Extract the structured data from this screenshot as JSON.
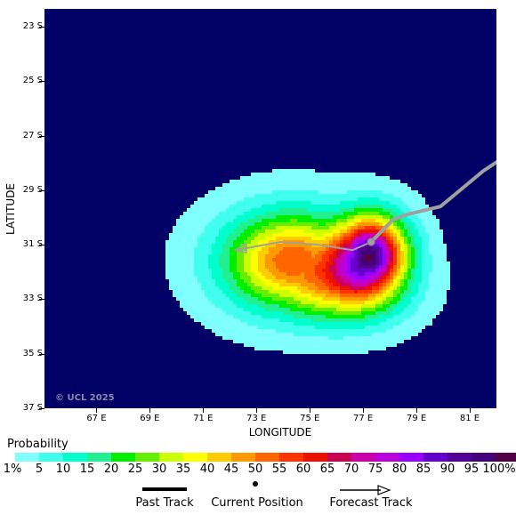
{
  "map": {
    "background_color": "#000066",
    "copyright": "© UCL 2025",
    "lat_labels": [
      "23 S",
      "25 S",
      "27 S",
      "29 S",
      "31 S",
      "33 S",
      "35 S",
      "37 S"
    ],
    "lon_labels": [
      "67 E",
      "69 E",
      "71 E",
      "73 E",
      "75 E",
      "77 E",
      "79 E",
      "81 E"
    ],
    "x_axis_title": "LONGITUDE",
    "y_axis_title": "LATITUDE",
    "track_color": "#a0a0a0",
    "past_track": [
      [
        83.5,
        27.0
      ],
      [
        81.5,
        28.3
      ],
      [
        79.9,
        29.6
      ],
      [
        78.6,
        29.9
      ],
      [
        78.1,
        30.1
      ],
      [
        77.8,
        30.4
      ],
      [
        77.5,
        30.7
      ],
      [
        77.3,
        30.9
      ]
    ],
    "forecast_track": [
      [
        77.3,
        30.9
      ],
      [
        76.6,
        31.2
      ],
      [
        75.3,
        31.0
      ],
      [
        73.9,
        30.9
      ],
      [
        72.2,
        31.2
      ]
    ],
    "current_position": [
      77.3,
      30.9
    ]
  },
  "legend": {
    "probability_title": "Probability",
    "colorbar_labels": [
      "1%",
      "5",
      "10",
      "15",
      "20",
      "25",
      "30",
      "35",
      "40",
      "45",
      "50",
      "55",
      "60",
      "65",
      "70",
      "75",
      "80",
      "85",
      "90",
      "95",
      "100%"
    ],
    "colorbar_colors": [
      "#80ffff",
      "#40ffee",
      "#00ffcc",
      "#20f090",
      "#00ee00",
      "#66ee00",
      "#ccff00",
      "#ffff00",
      "#ffcc00",
      "#ff9900",
      "#ff6600",
      "#ff3300",
      "#ee1100",
      "#cc0055",
      "#cc00aa",
      "#bb00dd",
      "#9900ff",
      "#6600cc",
      "#550099",
      "#440077",
      "#550044"
    ],
    "past_track_label": "Past Track",
    "current_position_label": "Current Position",
    "forecast_track_label": "Forecast Track"
  }
}
